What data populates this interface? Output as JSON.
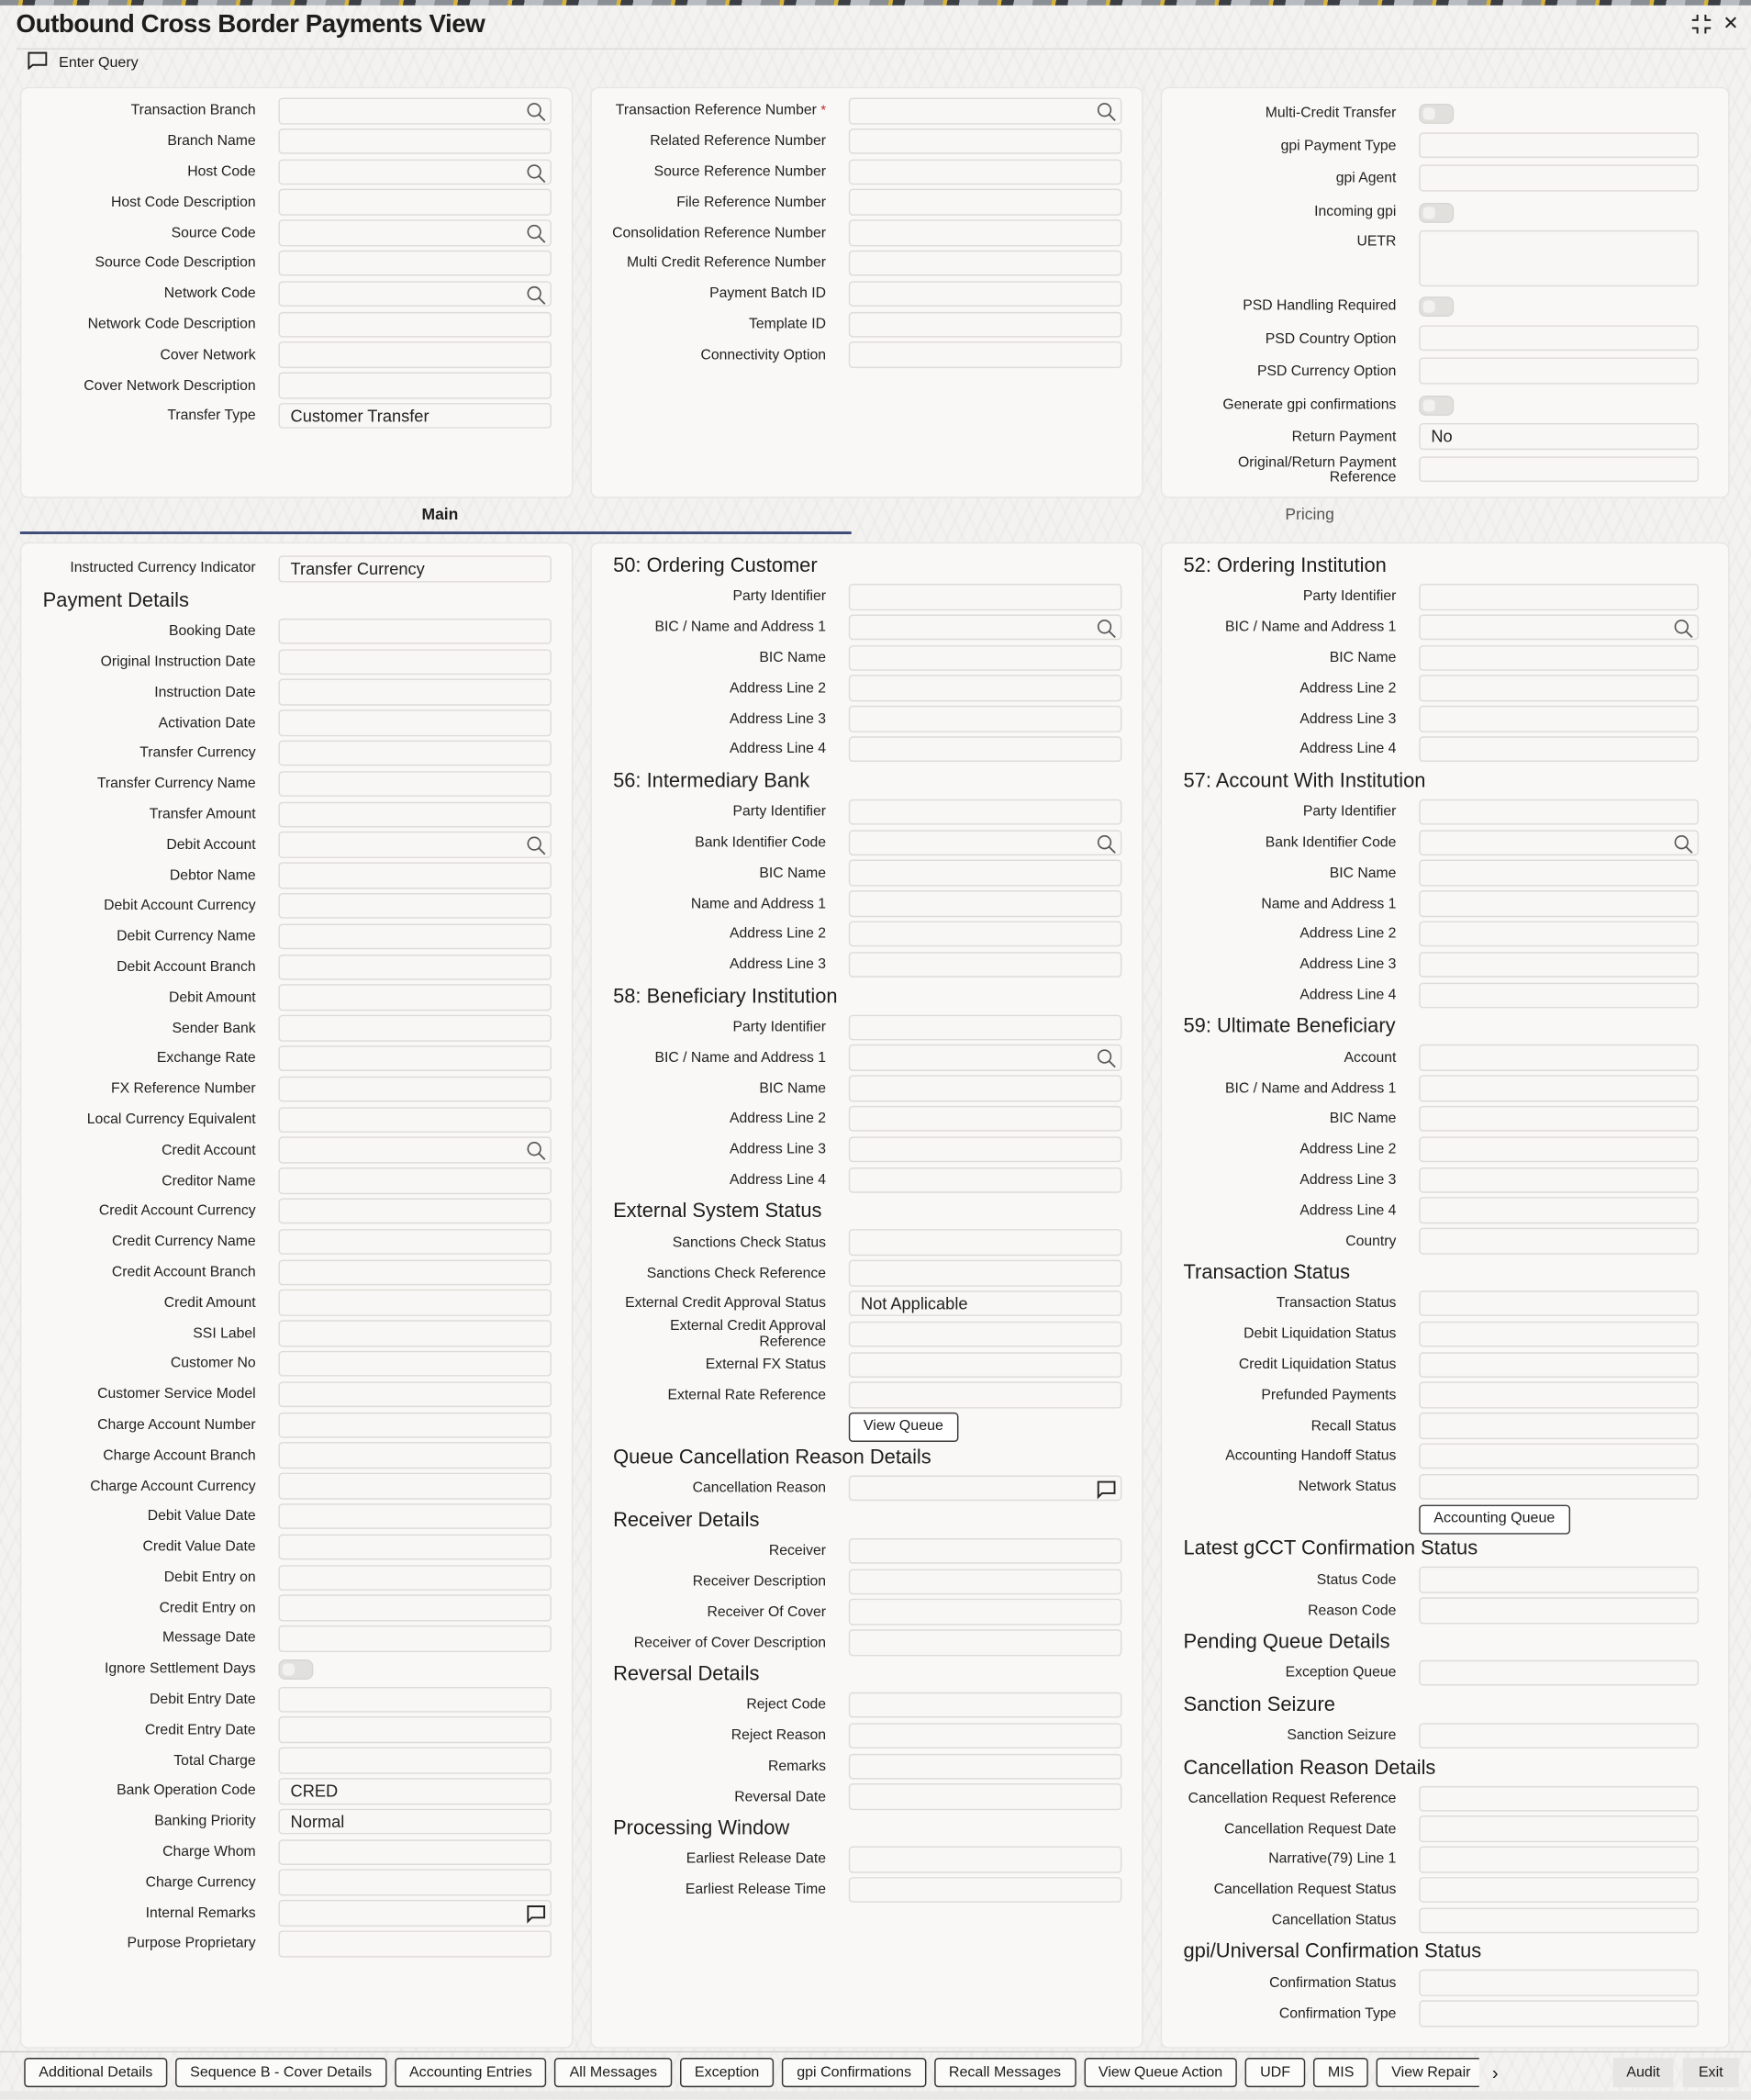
{
  "title": "Outbound Cross Border Payments View",
  "window_controls": {
    "maximize_icon": "collapse-arrows",
    "close_label": "✕"
  },
  "toolbar": {
    "enter_query": "Enter Query",
    "icon": "message-square"
  },
  "header_panels": [
    [
      {
        "label": "Transaction Branch",
        "input": "search"
      },
      {
        "label": "Branch Name"
      },
      {
        "label": "Host Code",
        "input": "search"
      },
      {
        "label": "Host Code Description"
      },
      {
        "label": "Source Code",
        "input": "search"
      },
      {
        "label": "Source Code Description"
      },
      {
        "label": "Network Code",
        "input": "search"
      },
      {
        "label": "Network Code Description"
      },
      {
        "label": "Cover Network"
      },
      {
        "label": "Cover Network Description"
      },
      {
        "label": "Transfer Type",
        "value": "Customer Transfer"
      }
    ],
    [
      {
        "label": "Transaction Reference Number",
        "input": "search",
        "required": "*"
      },
      {
        "label": "Related Reference Number"
      },
      {
        "label": "Source Reference Number"
      },
      {
        "label": "File Reference Number"
      },
      {
        "label": "Consolidation Reference Number"
      },
      {
        "label": "Multi Credit Reference Number"
      },
      {
        "label": "Payment Batch ID"
      },
      {
        "label": "Template ID"
      },
      {
        "label": "Connectivity Option"
      }
    ],
    [
      {
        "label": "Multi-Credit Transfer",
        "input": "toggle",
        "checked": false
      },
      {
        "label": "gpi Payment Type"
      },
      {
        "label": "gpi Agent"
      },
      {
        "label": "Incoming gpi",
        "input": "toggle",
        "checked": false
      },
      {
        "label": "UETR",
        "input": "textarea"
      },
      {
        "label": "PSD Handling Required",
        "input": "toggle",
        "checked": false
      },
      {
        "label": "PSD Country Option"
      },
      {
        "label": "PSD Currency Option"
      },
      {
        "label": "Generate gpi confirmations",
        "input": "toggle",
        "checked": false
      },
      {
        "label": "Return Payment",
        "value": "No"
      },
      {
        "label": "Original/Return Payment Reference"
      }
    ]
  ],
  "tabs": [
    {
      "label": "Main",
      "active": true
    },
    {
      "label": "Pricing",
      "active": false
    }
  ],
  "main_columns": [
    [
      {
        "label": "Instructed Currency Indicator",
        "value": "Transfer Currency"
      },
      {
        "heading": "Payment Details"
      },
      {
        "label": "Booking Date"
      },
      {
        "label": "Original Instruction Date"
      },
      {
        "label": "Instruction Date"
      },
      {
        "label": "Activation Date"
      },
      {
        "label": "Transfer Currency"
      },
      {
        "label": "Transfer Currency Name"
      },
      {
        "label": "Transfer Amount"
      },
      {
        "label": "Debit Account",
        "input": "search"
      },
      {
        "label": "Debtor Name"
      },
      {
        "label": "Debit Account Currency"
      },
      {
        "label": "Debit Currency Name"
      },
      {
        "label": "Debit Account Branch"
      },
      {
        "label": "Debit Amount"
      },
      {
        "label": "Sender Bank"
      },
      {
        "label": "Exchange Rate"
      },
      {
        "label": "FX Reference Number"
      },
      {
        "label": "Local Currency Equivalent"
      },
      {
        "label": "Credit Account",
        "input": "search"
      },
      {
        "label": "Creditor Name"
      },
      {
        "label": "Credit Account Currency"
      },
      {
        "label": "Credit Currency Name"
      },
      {
        "label": "Credit Account Branch"
      },
      {
        "label": "Credit Amount"
      },
      {
        "label": "SSI Label"
      },
      {
        "label": "Customer No"
      },
      {
        "label": "Customer Service Model"
      },
      {
        "label": "Charge Account Number"
      },
      {
        "label": "Charge Account Branch"
      },
      {
        "label": "Charge Account Currency"
      },
      {
        "label": "Debit Value Date"
      },
      {
        "label": "Credit Value Date"
      },
      {
        "label": "Debit Entry on"
      },
      {
        "label": "Credit Entry on"
      },
      {
        "label": "Message Date"
      },
      {
        "label": "Ignore Settlement Days",
        "input": "toggle",
        "checked": false
      },
      {
        "label": "Debit Entry Date"
      },
      {
        "label": "Credit Entry Date"
      },
      {
        "label": "Total Charge"
      },
      {
        "label": "Bank Operation Code",
        "value": "CRED"
      },
      {
        "label": "Banking Priority",
        "value": "Normal"
      },
      {
        "label": "Charge Whom"
      },
      {
        "label": "Charge Currency"
      },
      {
        "label": "Internal Remarks",
        "input": "remarks"
      },
      {
        "label": "Purpose Proprietary"
      }
    ],
    [
      {
        "heading": "50: Ordering Customer"
      },
      {
        "label": "Party Identifier"
      },
      {
        "label": "BIC / Name and Address 1",
        "input": "search"
      },
      {
        "label": "BIC Name"
      },
      {
        "label": "Address Line 2"
      },
      {
        "label": "Address Line 3"
      },
      {
        "label": "Address Line 4"
      },
      {
        "heading": "56: Intermediary Bank"
      },
      {
        "label": "Party Identifier"
      },
      {
        "label": "Bank Identifier Code",
        "input": "search"
      },
      {
        "label": "BIC Name"
      },
      {
        "label": "Name and Address 1"
      },
      {
        "label": "Address Line 2"
      },
      {
        "label": "Address Line 3"
      },
      {
        "heading": "58: Beneficiary Institution"
      },
      {
        "label": "Party Identifier"
      },
      {
        "label": "BIC / Name and Address 1",
        "input": "search"
      },
      {
        "label": "BIC Name"
      },
      {
        "label": "Address Line 2"
      },
      {
        "label": "Address Line 3"
      },
      {
        "label": "Address Line 4"
      },
      {
        "heading": "External System Status"
      },
      {
        "label": "Sanctions Check Status"
      },
      {
        "label": "Sanctions Check Reference"
      },
      {
        "label": "External Credit Approval Status",
        "value": "Not Applicable"
      },
      {
        "label": "External Credit Approval Reference"
      },
      {
        "label": "External FX Status"
      },
      {
        "label": "External Rate Reference"
      },
      {
        "button": "View Queue"
      },
      {
        "heading": "Queue Cancellation Reason Details"
      },
      {
        "label": "Cancellation Reason",
        "input": "remarks"
      },
      {
        "heading": "Receiver Details"
      },
      {
        "label": "Receiver"
      },
      {
        "label": "Receiver Description"
      },
      {
        "label": "Receiver Of Cover"
      },
      {
        "label": "Receiver of Cover Description"
      },
      {
        "heading": "Reversal Details"
      },
      {
        "label": "Reject Code"
      },
      {
        "label": "Reject Reason"
      },
      {
        "label": "Remarks"
      },
      {
        "label": "Reversal Date"
      },
      {
        "heading": "Processing Window"
      },
      {
        "label": "Earliest Release Date"
      },
      {
        "label": "Earliest Release Time"
      }
    ],
    [
      {
        "heading": "52: Ordering Institution"
      },
      {
        "label": "Party Identifier"
      },
      {
        "label": "BIC / Name and Address 1",
        "input": "search"
      },
      {
        "label": "BIC Name"
      },
      {
        "label": "Address Line 2"
      },
      {
        "label": "Address Line 3"
      },
      {
        "label": "Address Line 4"
      },
      {
        "heading": "57: Account With Institution"
      },
      {
        "label": "Party Identifier"
      },
      {
        "label": "Bank Identifier Code",
        "input": "search"
      },
      {
        "label": "BIC Name"
      },
      {
        "label": "Name and Address 1"
      },
      {
        "label": "Address Line 2"
      },
      {
        "label": "Address Line 3"
      },
      {
        "label": "Address Line 4"
      },
      {
        "heading": "59: Ultimate Beneficiary"
      },
      {
        "label": "Account"
      },
      {
        "label": "BIC / Name and Address 1"
      },
      {
        "label": "BIC Name"
      },
      {
        "label": "Address Line 2"
      },
      {
        "label": "Address Line 3"
      },
      {
        "label": "Address Line 4"
      },
      {
        "label": "Country"
      },
      {
        "heading": "Transaction Status"
      },
      {
        "label": "Transaction Status"
      },
      {
        "label": "Debit Liquidation Status"
      },
      {
        "label": "Credit Liquidation Status"
      },
      {
        "label": "Prefunded Payments"
      },
      {
        "label": "Recall Status"
      },
      {
        "label": "Accounting Handoff Status"
      },
      {
        "label": "Network Status"
      },
      {
        "button": "Accounting Queue"
      },
      {
        "heading": "Latest gCCT Confirmation Status"
      },
      {
        "label": "Status Code"
      },
      {
        "label": "Reason Code"
      },
      {
        "heading": "Pending Queue Details"
      },
      {
        "label": "Exception Queue"
      },
      {
        "heading": "Sanction Seizure"
      },
      {
        "label": "Sanction Seizure"
      },
      {
        "heading": "Cancellation Reason Details"
      },
      {
        "label": "Cancellation Request Reference"
      },
      {
        "label": "Cancellation Request Date"
      },
      {
        "label": "Narrative(79) Line 1"
      },
      {
        "label": "Cancellation Request Status"
      },
      {
        "label": "Cancellation Status"
      },
      {
        "heading": "gpi/Universal Confirmation Status"
      },
      {
        "label": "Confirmation Status"
      },
      {
        "label": "Confirmation Type"
      }
    ]
  ],
  "footer": {
    "buttons": [
      "Additional Details",
      "Sequence B - Cover Details",
      "Accounting Entries",
      "All Messages",
      "Exception",
      "gpi Confirmations",
      "Recall Messages",
      "View Queue Action",
      "UDF",
      "MIS",
      "View Repair"
    ],
    "more_icon": "chevron-right",
    "audit": "Audit",
    "exit": "Exit"
  }
}
